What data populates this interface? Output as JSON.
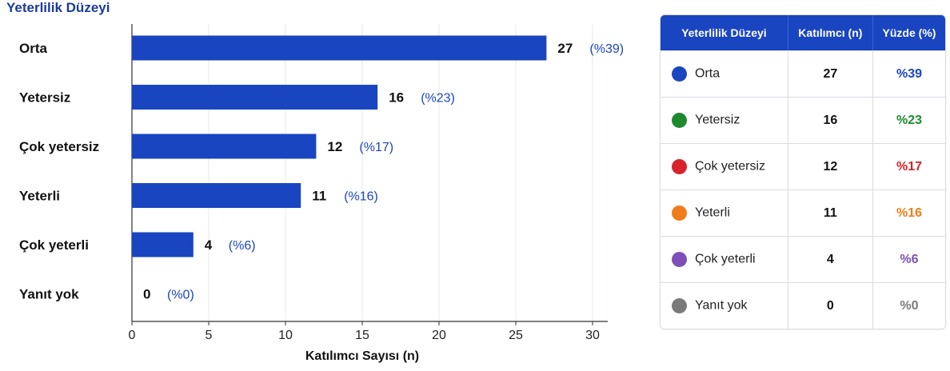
{
  "chart_data": {
    "type": "bar",
    "orientation": "horizontal",
    "title": "Yeterlilik Düzeyi",
    "xlabel": "Katılımcı Sayısı (n)",
    "ylabel": "",
    "xlim": [
      0,
      30
    ],
    "xticks": [
      0,
      5,
      10,
      15,
      20,
      25,
      30
    ],
    "grid": true,
    "categories": [
      "Orta",
      "Yetersiz",
      "Çok yetersiz",
      "Yeterli",
      "Çok yeterli",
      "Yanıt yok"
    ],
    "values": [
      27,
      16,
      12,
      11,
      4,
      0
    ],
    "percent_labels": [
      "(%39)",
      "(%23)",
      "(%17)",
      "(%16)",
      "(%6)",
      "(%0)"
    ],
    "bar_color": "#1a45c0",
    "percent_color": "#1a45c0"
  },
  "table": {
    "headers": [
      "Yeterlilik Düzeyi",
      "Katılımcı (n)",
      "Yüzde (%)"
    ],
    "header_color": "#1a45c0",
    "rows": [
      {
        "level": "Orta",
        "count": "27",
        "percent": "%39",
        "color": "#1a45c0"
      },
      {
        "level": "Yetersiz",
        "count": "16",
        "percent": "%23",
        "color": "#1e8a2e"
      },
      {
        "level": "Çok yetersiz",
        "count": "12",
        "percent": "%17",
        "color": "#d9232a"
      },
      {
        "level": "Yeterli",
        "count": "11",
        "percent": "%16",
        "color": "#f07d1a"
      },
      {
        "level": "Çok yeterli",
        "count": "4",
        "percent": "%6",
        "color": "#7e4fb8"
      },
      {
        "level": "Yanıt yok",
        "count": "0",
        "percent": "%0",
        "color": "#7a7a7a"
      }
    ]
  }
}
